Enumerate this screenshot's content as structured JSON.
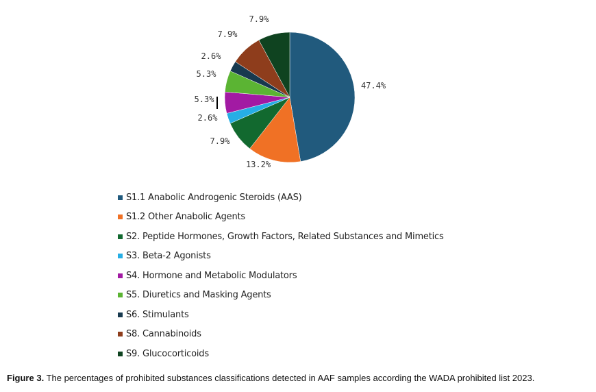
{
  "chart_data": {
    "type": "pie",
    "slices": [
      {
        "label": "S1.1 Anabolic Androgenic Steroids (AAS)",
        "value": 47.4,
        "value_label": "47.4%",
        "color": "#215a7d"
      },
      {
        "label": "S1.2 Other Anabolic Agents",
        "value": 13.2,
        "value_label": "13.2%",
        "color": "#f07125"
      },
      {
        "label": "S2. Peptide Hormones, Growth Factors, Related Substances and Mimetics",
        "value": 7.9,
        "value_label": "7.9%",
        "color": "#12692f"
      },
      {
        "label": "S3. Beta-2 Agonists",
        "value": 2.6,
        "value_label": "2.6%",
        "color": "#26aee5"
      },
      {
        "label": "S4. Hormone and Metabolic Modulators",
        "value": 5.3,
        "value_label": "5.3%",
        "color": "#a21aa3"
      },
      {
        "label": "S5. Diuretics and Masking Agents",
        "value": 5.3,
        "value_label": "5.3%",
        "color": "#5bb433"
      },
      {
        "label": "S6. Stimulants",
        "value": 2.6,
        "value_label": "2.6%",
        "color": "#17394f"
      },
      {
        "label": "S8. Cannabinoids",
        "value": 7.9,
        "value_label": "7.9%",
        "color": "#8e3d1c"
      },
      {
        "label": "S9. Glucocorticoids",
        "value": 7.9,
        "value_label": "7.9%",
        "color": "#0f4320"
      }
    ],
    "legend_position": "bottom-left",
    "start": "top, clockwise"
  },
  "caption": {
    "label": "Figure 3.",
    "text": " The percentages of prohibited substances classifications detected in AAF samples according the WADA prohibited list 2023."
  }
}
